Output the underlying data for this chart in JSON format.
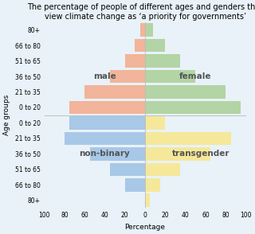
{
  "title": "The percentage of people of different ages and genders that\nview climate change as ‘a priority for governments’",
  "xlabel": "Percentage",
  "ylabel": "Age groups",
  "age_groups_upper": [
    "80+",
    "66 to 80",
    "51 to 65",
    "36 to 50",
    "21 to 35",
    "0 to 20"
  ],
  "age_groups_lower": [
    "0 to 20",
    "21 to 35",
    "36 to 50",
    "51 to 65",
    "66 to 80",
    "80+"
  ],
  "male_values": [
    5,
    10,
    20,
    35,
    60,
    75
  ],
  "female_values": [
    8,
    20,
    35,
    50,
    80,
    95
  ],
  "nonbinary_values": [
    75,
    80,
    55,
    35,
    20,
    0
  ],
  "transgender_values": [
    20,
    85,
    65,
    35,
    15,
    5
  ],
  "male_color": "#f2b49a",
  "female_color": "#b3d4a5",
  "nonbinary_color": "#a8c8e8",
  "transgender_color": "#f5e89a",
  "bg_color": "#e8f2f8",
  "xlim": 100,
  "title_fontsize": 7.0,
  "label_fontsize": 6.5,
  "tick_fontsize": 5.5,
  "text_color": "#555555"
}
